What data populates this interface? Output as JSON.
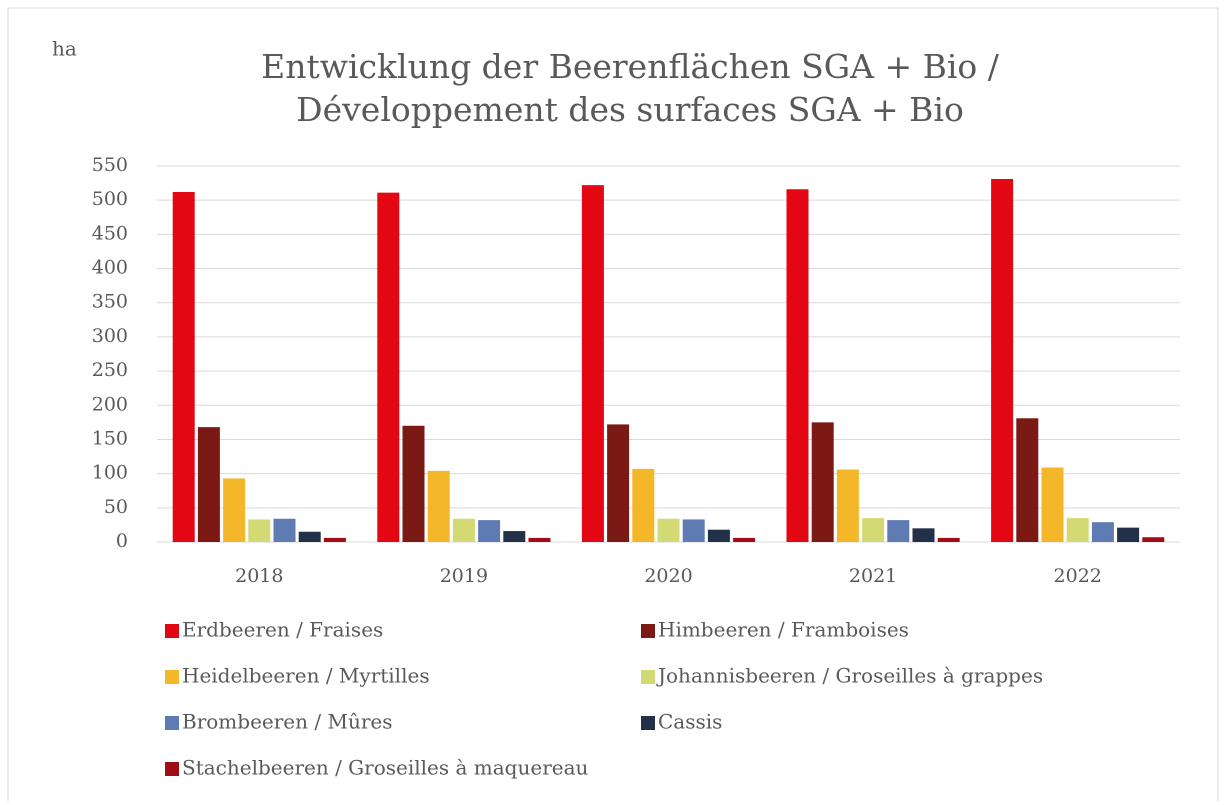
{
  "chart_data": {
    "type": "bar",
    "title": [
      "Entwicklung der Beerenflächen SGA + Bio /",
      "Développement des surfaces SGA + Bio"
    ],
    "y_label": "ha",
    "categories": [
      "2018",
      "2019",
      "2020",
      "2021",
      "2022"
    ],
    "series": [
      {
        "name": "Erdbeeren / Fraises",
        "color": "#e30613",
        "values": [
          512,
          511,
          522,
          516,
          531
        ]
      },
      {
        "name": "Himbeeren / Framboises",
        "color": "#7b1a14",
        "values": [
          168,
          170,
          172,
          175,
          181
        ]
      },
      {
        "name": "Heidelbeeren / Myrtilles",
        "color": "#f4b72a",
        "values": [
          93,
          104,
          107,
          106,
          109
        ]
      },
      {
        "name": "Johannisbeeren / Groseilles à grappes",
        "color": "#d3da73",
        "values": [
          33,
          34,
          34,
          35,
          35
        ]
      },
      {
        "name": "Brombeeren / Mûres",
        "color": "#5f7bb3",
        "values": [
          34,
          32,
          33,
          32,
          29
        ]
      },
      {
        "name": "Cassis",
        "color": "#23304a",
        "values": [
          15,
          16,
          18,
          20,
          21
        ]
      },
      {
        "name": "Stachelbeeren / Groseilles à maquereau",
        "color": "#a00d16",
        "values": [
          6,
          6,
          6,
          6,
          7
        ]
      }
    ],
    "ylim": [
      0,
      550
    ],
    "yticks": [
      0,
      50,
      100,
      150,
      200,
      250,
      300,
      350,
      400,
      450,
      500,
      550
    ],
    "grid": true,
    "legend": "bottom"
  }
}
